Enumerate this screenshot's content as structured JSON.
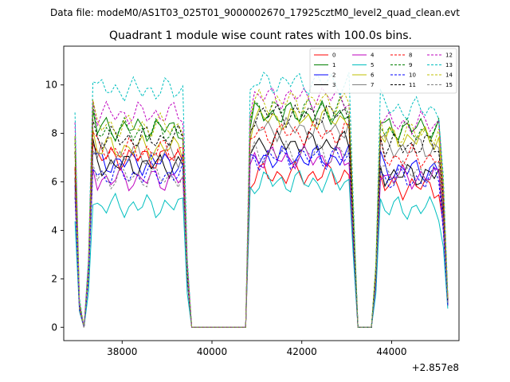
{
  "chart_data": {
    "type": "line",
    "suptitle": "Data file: modeM0/AS1T03_025T01_9000002670_17925cztM0_level2_quad_clean.evt",
    "title": "Quadrant 1 module wise count rates with 100.0s bins.",
    "xlabel": "",
    "ylabel": "",
    "x_offset_label": "+2.857e8",
    "xlim": [
      36700,
      45500
    ],
    "ylim": [
      -0.55,
      11.6
    ],
    "x_ticks": [
      38000,
      40000,
      42000,
      44000
    ],
    "x_tick_labels": [
      "38000",
      "40000",
      "42000",
      "44000"
    ],
    "y_ticks": [
      0,
      2,
      4,
      6,
      8,
      10
    ],
    "y_tick_labels": [
      "0",
      "2",
      "4",
      "6",
      "8",
      "10"
    ],
    "legend_position": "top-right",
    "x_start": 36950,
    "x_step": 100,
    "gaps": [
      [
        39550,
        40750
      ],
      [
        43250,
        43550
      ]
    ],
    "gap_value": 0,
    "series": [
      {
        "name": "0",
        "color": "#ff0000",
        "dash": "solid",
        "base": [
          7.0,
          6.3,
          5.8
        ]
      },
      {
        "name": "1",
        "color": "#008000",
        "dash": "solid",
        "base": [
          8.2,
          8.8,
          8.2
        ]
      },
      {
        "name": "2",
        "color": "#0000ff",
        "dash": "solid",
        "base": [
          6.8,
          7.0,
          6.5
        ]
      },
      {
        "name": "3",
        "color": "#000000",
        "dash": "solid",
        "base": [
          6.7,
          7.6,
          6.3
        ]
      },
      {
        "name": "4",
        "color": "#bf00bf",
        "dash": "solid",
        "base": [
          6.1,
          7.0,
          6.2
        ]
      },
      {
        "name": "5",
        "color": "#00bfbf",
        "dash": "solid",
        "base": [
          5.0,
          6.0,
          4.9
        ]
      },
      {
        "name": "6",
        "color": "#bfbf00",
        "dash": "solid",
        "base": [
          7.4,
          8.6,
          7.8
        ]
      },
      {
        "name": "7",
        "color": "#808080",
        "dash": "solid",
        "base": [
          7.1,
          8.2,
          7.4
        ]
      },
      {
        "name": "8",
        "color": "#ff0000",
        "dash": "dashed",
        "base": [
          7.3,
          8.0,
          7.0
        ]
      },
      {
        "name": "9",
        "color": "#008000",
        "dash": "dashed",
        "base": [
          8.1,
          9.0,
          8.1
        ]
      },
      {
        "name": "10",
        "color": "#0000ff",
        "dash": "dashed",
        "base": [
          6.3,
          7.0,
          6.1
        ]
      },
      {
        "name": "11",
        "color": "#000000",
        "dash": "dashed",
        "base": [
          7.8,
          8.8,
          7.5
        ]
      },
      {
        "name": "12",
        "color": "#bf00bf",
        "dash": "dashed",
        "base": [
          8.8,
          9.5,
          8.4
        ]
      },
      {
        "name": "13",
        "color": "#00bfbf",
        "dash": "dashed",
        "base": [
          9.8,
          10.1,
          9.0
        ]
      },
      {
        "name": "14",
        "color": "#bfbf00",
        "dash": "dashed",
        "base": [
          8.3,
          9.3,
          8.0
        ]
      },
      {
        "name": "15",
        "color": "#808080",
        "dash": "dashed",
        "base": [
          6.2,
          7.2,
          6.4
        ]
      }
    ]
  }
}
